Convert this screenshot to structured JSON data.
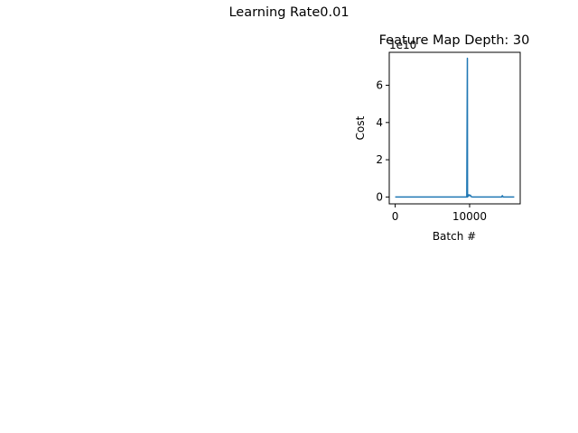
{
  "figure": {
    "suptitle": "Learning Rate0.01"
  },
  "chart_data": {
    "type": "line",
    "title": "Feature Map Depth: 30",
    "xlabel": "Batch #",
    "ylabel": "Cost",
    "y_offset_text": "1e10",
    "xlim": [
      -800,
      16800
    ],
    "ylim": [
      -0.37,
      7.77
    ],
    "xticks": [
      0,
      10000
    ],
    "yticks": [
      0,
      2,
      4,
      6
    ],
    "grid": false,
    "legend": "none",
    "color": "#1f77b4",
    "series": [
      {
        "x": [
          0,
          2000,
          4000,
          6000,
          8000,
          9500,
          9620,
          9700,
          9720,
          9800,
          9900,
          10000,
          10100,
          10200,
          10400,
          11000,
          12000,
          13000,
          14000,
          14300,
          14400,
          14500,
          15000,
          16000
        ],
        "y": [
          0.0,
          0.0,
          0.0,
          0.0,
          0.0,
          0.0,
          0.0,
          7.45,
          0.0,
          0.05,
          0.12,
          0.07,
          0.1,
          0.02,
          0.0,
          0.0,
          0.0,
          0.0,
          0.0,
          0.0,
          0.07,
          0.0,
          0.0,
          0.0
        ]
      }
    ]
  }
}
